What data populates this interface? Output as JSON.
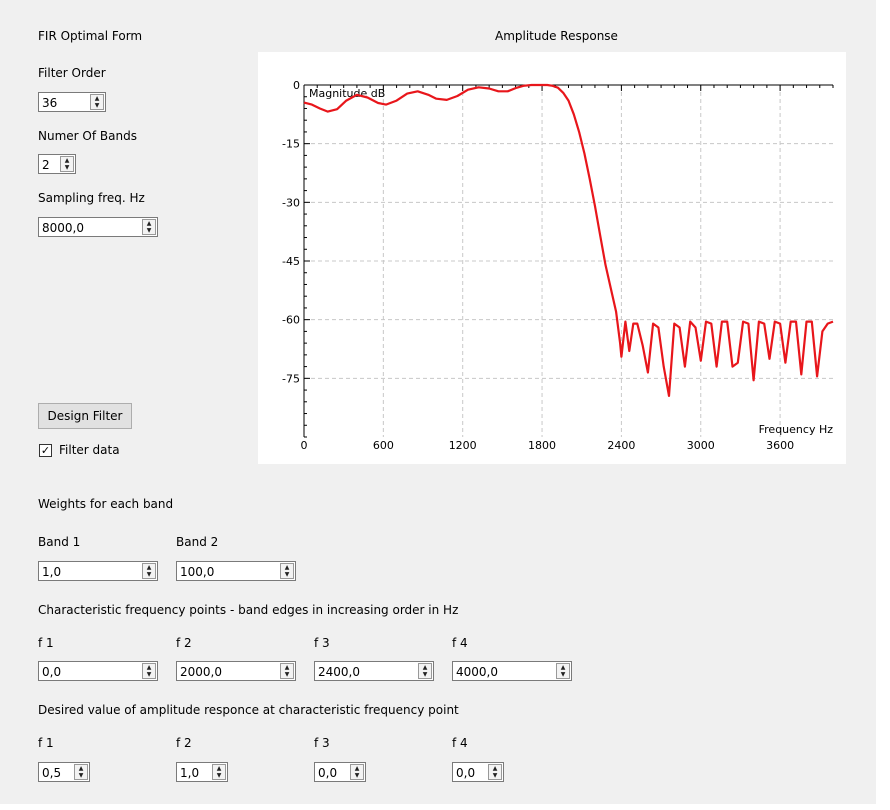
{
  "form": {
    "title": "FIR Optimal Form",
    "filter_order_label": "Filter Order",
    "filter_order_value": "36",
    "num_bands_label": "Numer Of Bands",
    "num_bands_value": "2",
    "sampling_label": "Sampling freq. Hz",
    "sampling_value": "8000,0",
    "design_button": "Design Filter",
    "filter_data_label": "Filter data",
    "filter_data_checked": true
  },
  "weights": {
    "section_label": "Weights for each band",
    "bands": [
      {
        "label": "Band 1",
        "value": "1,0"
      },
      {
        "label": "Band 2",
        "value": "100,0"
      }
    ]
  },
  "freq_points": {
    "section_label": "Characteristic frequency points - band edges in increasing order in Hz",
    "items": [
      {
        "label": "f 1",
        "value": "0,0"
      },
      {
        "label": "f 2",
        "value": "2000,0"
      },
      {
        "label": "f 3",
        "value": "2400,0"
      },
      {
        "label": "f 4",
        "value": "4000,0"
      }
    ]
  },
  "desired": {
    "section_label": "Desired value of amplitude responce at characteristic frequency point",
    "items": [
      {
        "label": "f 1",
        "value": "0,5"
      },
      {
        "label": "f 2",
        "value": "1,0"
      },
      {
        "label": "f 3",
        "value": "0,0"
      },
      {
        "label": "f 4",
        "value": "0,0"
      }
    ]
  },
  "chart_data": {
    "type": "line",
    "title": "Amplitude Response",
    "xlabel": "Frequency Hz",
    "ylabel": "Magnitude dB",
    "xlim": [
      0,
      4000
    ],
    "ylim": [
      -90,
      0
    ],
    "x_ticks": [
      0,
      600,
      1200,
      1800,
      2400,
      3000,
      3600
    ],
    "y_ticks": [
      0,
      -15,
      -30,
      -45,
      -60,
      -75
    ],
    "grid": true,
    "line_color": "#e8161b",
    "series": [
      {
        "x": [
          0,
          60,
          120,
          180,
          250,
          320,
          400,
          480,
          560,
          620,
          700,
          780,
          860,
          940,
          1000,
          1080,
          1160,
          1240,
          1320,
          1400,
          1470,
          1540,
          1600,
          1660,
          1720,
          1780,
          1840,
          1880,
          1920,
          1960,
          2000,
          2040,
          2080,
          2120,
          2160,
          2200,
          2240,
          2280,
          2320,
          2360,
          2390,
          2400,
          2430,
          2460,
          2490,
          2520,
          2560,
          2600,
          2640,
          2680,
          2720,
          2760,
          2800,
          2840,
          2880,
          2920,
          2960,
          3000,
          3040,
          3080,
          3120,
          3160,
          3200,
          3240,
          3280,
          3320,
          3360,
          3400,
          3440,
          3480,
          3520,
          3560,
          3600,
          3640,
          3680,
          3720,
          3760,
          3800,
          3840,
          3880,
          3920,
          3960,
          4000
        ],
        "y": [
          -4.5,
          -5.0,
          -6.0,
          -6.8,
          -6.2,
          -4.0,
          -2.5,
          -3.2,
          -4.6,
          -5.0,
          -4.0,
          -2.2,
          -1.6,
          -2.5,
          -3.5,
          -3.8,
          -2.8,
          -1.2,
          -0.6,
          -0.9,
          -1.6,
          -1.6,
          -0.8,
          -0.2,
          0.0,
          0.0,
          0.0,
          -0.2,
          -0.7,
          -2.0,
          -4.0,
          -7.5,
          -12.0,
          -17.5,
          -24.0,
          -31.0,
          -38.5,
          -46.0,
          -52.0,
          -58.0,
          -66.0,
          -69.5,
          -60.5,
          -68.0,
          -61.0,
          -61.0,
          -66.5,
          -73.5,
          -61.0,
          -62.0,
          -72.0,
          -79.5,
          -61.0,
          -62.0,
          -72.0,
          -60.5,
          -62.0,
          -70.5,
          -60.5,
          -61.0,
          -72.0,
          -60.5,
          -60.5,
          -72.0,
          -71.0,
          -60.5,
          -61.0,
          -75.5,
          -60.5,
          -61.0,
          -70.0,
          -60.5,
          -61.0,
          -71.0,
          -60.5,
          -60.5,
          -74.0,
          -60.5,
          -60.5,
          -74.5,
          -63.0,
          -61.0,
          -60.5
        ]
      }
    ]
  }
}
